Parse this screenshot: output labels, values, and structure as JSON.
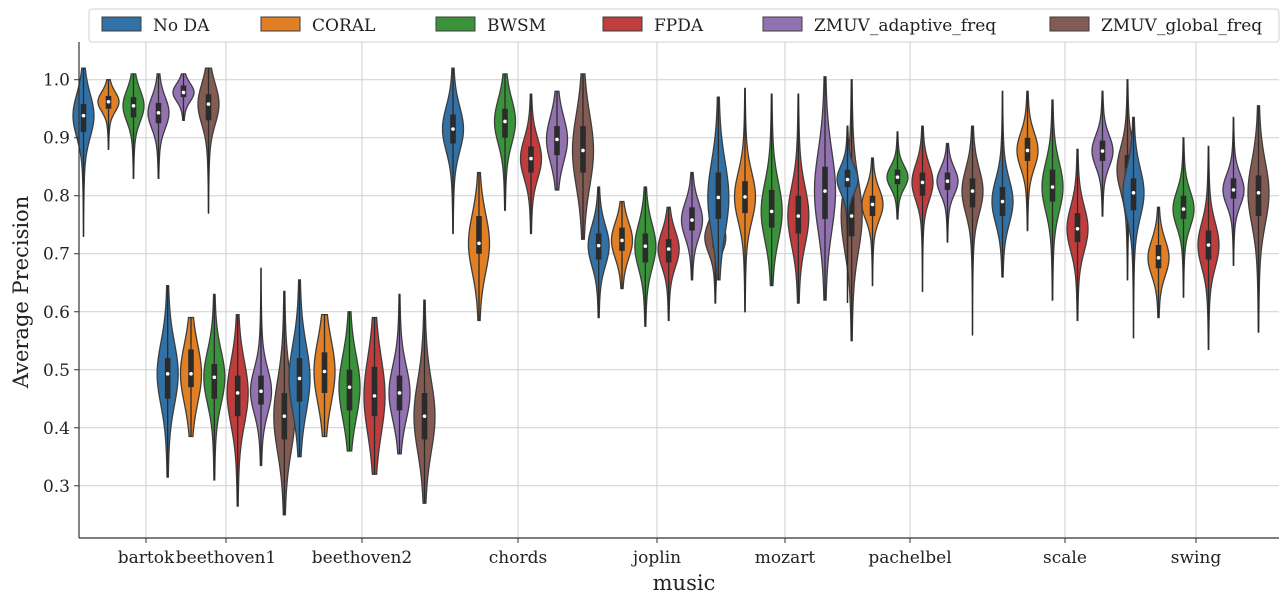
{
  "chart_data": {
    "type": "violin",
    "xlabel": "music",
    "ylabel": "Average Precision",
    "ylim": [
      0.21,
      1.065
    ],
    "yticks": [
      0.3,
      0.4,
      0.5,
      0.6,
      0.7,
      0.8,
      0.9,
      1.0
    ],
    "grid": true,
    "legend_position": "top",
    "categories": [
      "bartok",
      "beethoven1",
      "beethoven2",
      "chords",
      "joplin",
      "mozart",
      "pachelbel",
      "scale",
      "swing"
    ],
    "series": [
      {
        "name": "No DA",
        "color": "#3171a6"
      },
      {
        "name": "CORAL",
        "color": "#e07f23"
      },
      {
        "name": "BWSM",
        "color": "#3a923a"
      },
      {
        "name": "FPDA",
        "color": "#c03d3e"
      },
      {
        "name": "ZMUV_adaptive_freq",
        "color": "#9372b2"
      },
      {
        "name": "ZMUV_global_freq",
        "color": "#845b53"
      }
    ],
    "violins": [
      {
        "category": "bartok",
        "series": "No DA",
        "min": 0.73,
        "max": 1.02,
        "q1": 0.91,
        "median": 0.938,
        "q3": 0.958
      },
      {
        "category": "bartok",
        "series": "CORAL",
        "min": 0.88,
        "max": 1.0,
        "q1": 0.95,
        "median": 0.962,
        "q3": 0.972
      },
      {
        "category": "bartok",
        "series": "BWSM",
        "min": 0.83,
        "max": 1.01,
        "q1": 0.935,
        "median": 0.955,
        "q3": 0.97
      },
      {
        "category": "bartok",
        "series": "ZMUV_adaptive_freq",
        "min": 0.83,
        "max": 1.01,
        "q1": 0.925,
        "median": 0.943,
        "q3": 0.96
      },
      {
        "category": "bartok",
        "series": "ZMUV_adaptive_freq",
        "min": 0.93,
        "max": 1.01,
        "q1": 0.97,
        "median": 0.978,
        "q3": 0.99
      },
      {
        "category": "bartok",
        "series": "ZMUV_global_freq",
        "min": 0.77,
        "max": 1.02,
        "q1": 0.93,
        "median": 0.958,
        "q3": 0.975
      },
      {
        "category": "beethoven1",
        "series": "No DA",
        "min": 0.315,
        "max": 0.645,
        "q1": 0.45,
        "median": 0.493,
        "q3": 0.52
      },
      {
        "category": "beethoven1",
        "series": "CORAL",
        "min": 0.385,
        "max": 0.59,
        "q1": 0.47,
        "median": 0.493,
        "q3": 0.535
      },
      {
        "category": "beethoven1",
        "series": "BWSM",
        "min": 0.31,
        "max": 0.63,
        "q1": 0.45,
        "median": 0.487,
        "q3": 0.51
      },
      {
        "category": "beethoven1",
        "series": "FPDA",
        "min": 0.265,
        "max": 0.595,
        "q1": 0.42,
        "median": 0.46,
        "q3": 0.49
      },
      {
        "category": "beethoven1",
        "series": "ZMUV_adaptive_freq",
        "min": 0.335,
        "max": 0.675,
        "q1": 0.44,
        "median": 0.463,
        "q3": 0.49
      },
      {
        "category": "beethoven1",
        "series": "ZMUV_global_freq",
        "min": 0.25,
        "max": 0.635,
        "q1": 0.38,
        "median": 0.42,
        "q3": 0.46
      },
      {
        "category": "beethoven2",
        "series": "No DA",
        "min": 0.35,
        "max": 0.655,
        "q1": 0.445,
        "median": 0.485,
        "q3": 0.52
      },
      {
        "category": "beethoven2",
        "series": "CORAL",
        "min": 0.385,
        "max": 0.595,
        "q1": 0.46,
        "median": 0.497,
        "q3": 0.53
      },
      {
        "category": "beethoven2",
        "series": "BWSM",
        "min": 0.36,
        "max": 0.6,
        "q1": 0.43,
        "median": 0.47,
        "q3": 0.5
      },
      {
        "category": "beethoven2",
        "series": "FPDA",
        "min": 0.32,
        "max": 0.59,
        "q1": 0.42,
        "median": 0.455,
        "q3": 0.505
      },
      {
        "category": "beethoven2",
        "series": "ZMUV_adaptive_freq",
        "min": 0.355,
        "max": 0.63,
        "q1": 0.43,
        "median": 0.46,
        "q3": 0.49
      },
      {
        "category": "beethoven2",
        "series": "ZMUV_global_freq",
        "min": 0.27,
        "max": 0.62,
        "q1": 0.38,
        "median": 0.42,
        "q3": 0.46
      },
      {
        "category": "chords",
        "series": "No DA",
        "min": 0.735,
        "max": 1.02,
        "q1": 0.89,
        "median": 0.915,
        "q3": 0.94
      },
      {
        "category": "chords",
        "series": "CORAL",
        "min": 0.585,
        "max": 0.84,
        "q1": 0.7,
        "median": 0.718,
        "q3": 0.765
      },
      {
        "category": "chords",
        "series": "BWSM",
        "min": 0.775,
        "max": 1.01,
        "q1": 0.9,
        "median": 0.928,
        "q3": 0.95
      },
      {
        "category": "chords",
        "series": "FPDA",
        "min": 0.735,
        "max": 0.975,
        "q1": 0.84,
        "median": 0.864,
        "q3": 0.885
      },
      {
        "category": "chords",
        "series": "ZMUV_adaptive_freq",
        "min": 0.81,
        "max": 0.98,
        "q1": 0.87,
        "median": 0.897,
        "q3": 0.92
      },
      {
        "category": "chords",
        "series": "ZMUV_global_freq",
        "min": 0.725,
        "max": 1.01,
        "q1": 0.84,
        "median": 0.878,
        "q3": 0.92
      },
      {
        "category": "joplin",
        "series": "No DA",
        "min": 0.59,
        "max": 0.815,
        "q1": 0.69,
        "median": 0.714,
        "q3": 0.735
      },
      {
        "category": "joplin",
        "series": "CORAL",
        "min": 0.64,
        "max": 0.79,
        "q1": 0.705,
        "median": 0.723,
        "q3": 0.745
      },
      {
        "category": "joplin",
        "series": "BWSM",
        "min": 0.575,
        "max": 0.815,
        "q1": 0.685,
        "median": 0.713,
        "q3": 0.735
      },
      {
        "category": "joplin",
        "series": "FPDA",
        "min": 0.585,
        "max": 0.78,
        "q1": 0.685,
        "median": 0.708,
        "q3": 0.725
      },
      {
        "category": "joplin",
        "series": "ZMUV_adaptive_freq",
        "min": 0.655,
        "max": 0.84,
        "q1": 0.74,
        "median": 0.758,
        "q3": 0.78
      },
      {
        "category": "joplin",
        "series": "ZMUV_global_freq",
        "min": 0.615,
        "max": 0.815,
        "q1": 0.71,
        "median": 0.728,
        "q3": 0.745
      },
      {
        "category": "mozart",
        "series": "No DA",
        "min": 0.655,
        "max": 0.97,
        "q1": 0.76,
        "median": 0.797,
        "q3": 0.84
      },
      {
        "category": "mozart",
        "series": "CORAL",
        "min": 0.6,
        "max": 0.985,
        "q1": 0.77,
        "median": 0.798,
        "q3": 0.825
      },
      {
        "category": "mozart",
        "series": "BWSM",
        "min": 0.645,
        "max": 0.975,
        "q1": 0.745,
        "median": 0.773,
        "q3": 0.81
      },
      {
        "category": "mozart",
        "series": "FPDA",
        "min": 0.615,
        "max": 0.975,
        "q1": 0.735,
        "median": 0.765,
        "q3": 0.8
      },
      {
        "category": "mozart",
        "series": "ZMUV_adaptive_freq",
        "min": 0.62,
        "max": 1.005,
        "q1": 0.76,
        "median": 0.808,
        "q3": 0.85
      },
      {
        "category": "mozart",
        "series": "ZMUV_global_freq",
        "min": 0.55,
        "max": 1.0,
        "q1": 0.73,
        "median": 0.765,
        "q3": 0.81
      },
      {
        "category": "pachelbel",
        "series": "No DA",
        "min": 0.615,
        "max": 0.92,
        "q1": 0.815,
        "median": 0.828,
        "q3": 0.845
      },
      {
        "category": "pachelbel",
        "series": "CORAL",
        "min": 0.645,
        "max": 0.865,
        "q1": 0.765,
        "median": 0.785,
        "q3": 0.8
      },
      {
        "category": "pachelbel",
        "series": "BWSM",
        "min": 0.76,
        "max": 0.91,
        "q1": 0.82,
        "median": 0.832,
        "q3": 0.845
      },
      {
        "category": "pachelbel",
        "series": "FPDA",
        "min": 0.635,
        "max": 0.92,
        "q1": 0.8,
        "median": 0.823,
        "q3": 0.84
      },
      {
        "category": "pachelbel",
        "series": "ZMUV_adaptive_freq",
        "min": 0.72,
        "max": 0.89,
        "q1": 0.81,
        "median": 0.825,
        "q3": 0.84
      },
      {
        "category": "pachelbel",
        "series": "ZMUV_global_freq",
        "min": 0.56,
        "max": 0.92,
        "q1": 0.78,
        "median": 0.808,
        "q3": 0.83
      },
      {
        "category": "scale",
        "series": "No DA",
        "min": 0.66,
        "max": 0.98,
        "q1": 0.765,
        "median": 0.79,
        "q3": 0.815
      },
      {
        "category": "scale",
        "series": "CORAL",
        "min": 0.74,
        "max": 0.98,
        "q1": 0.86,
        "median": 0.878,
        "q3": 0.9
      },
      {
        "category": "scale",
        "series": "BWSM",
        "min": 0.62,
        "max": 0.965,
        "q1": 0.79,
        "median": 0.815,
        "q3": 0.845
      },
      {
        "category": "scale",
        "series": "FPDA",
        "min": 0.585,
        "max": 0.88,
        "q1": 0.72,
        "median": 0.743,
        "q3": 0.77
      },
      {
        "category": "scale",
        "series": "ZMUV_adaptive_freq",
        "min": 0.765,
        "max": 0.98,
        "q1": 0.86,
        "median": 0.877,
        "q3": 0.895
      },
      {
        "category": "scale",
        "series": "ZMUV_global_freq",
        "min": 0.655,
        "max": 1.0,
        "q1": 0.82,
        "median": 0.845,
        "q3": 0.87
      },
      {
        "category": "swing",
        "series": "No DA",
        "min": 0.555,
        "max": 0.935,
        "q1": 0.775,
        "median": 0.805,
        "q3": 0.83
      },
      {
        "category": "swing",
        "series": "CORAL",
        "min": 0.59,
        "max": 0.78,
        "q1": 0.675,
        "median": 0.693,
        "q3": 0.715
      },
      {
        "category": "swing",
        "series": "BWSM",
        "min": 0.625,
        "max": 0.9,
        "q1": 0.76,
        "median": 0.777,
        "q3": 0.8
      },
      {
        "category": "swing",
        "series": "FPDA",
        "min": 0.535,
        "max": 0.885,
        "q1": 0.69,
        "median": 0.715,
        "q3": 0.74
      },
      {
        "category": "swing",
        "series": "ZMUV_adaptive_freq",
        "min": 0.68,
        "max": 0.935,
        "q1": 0.795,
        "median": 0.81,
        "q3": 0.83
      },
      {
        "category": "swing",
        "series": "ZMUV_global_freq",
        "min": 0.565,
        "max": 0.955,
        "q1": 0.765,
        "median": 0.805,
        "q3": 0.835
      }
    ]
  }
}
